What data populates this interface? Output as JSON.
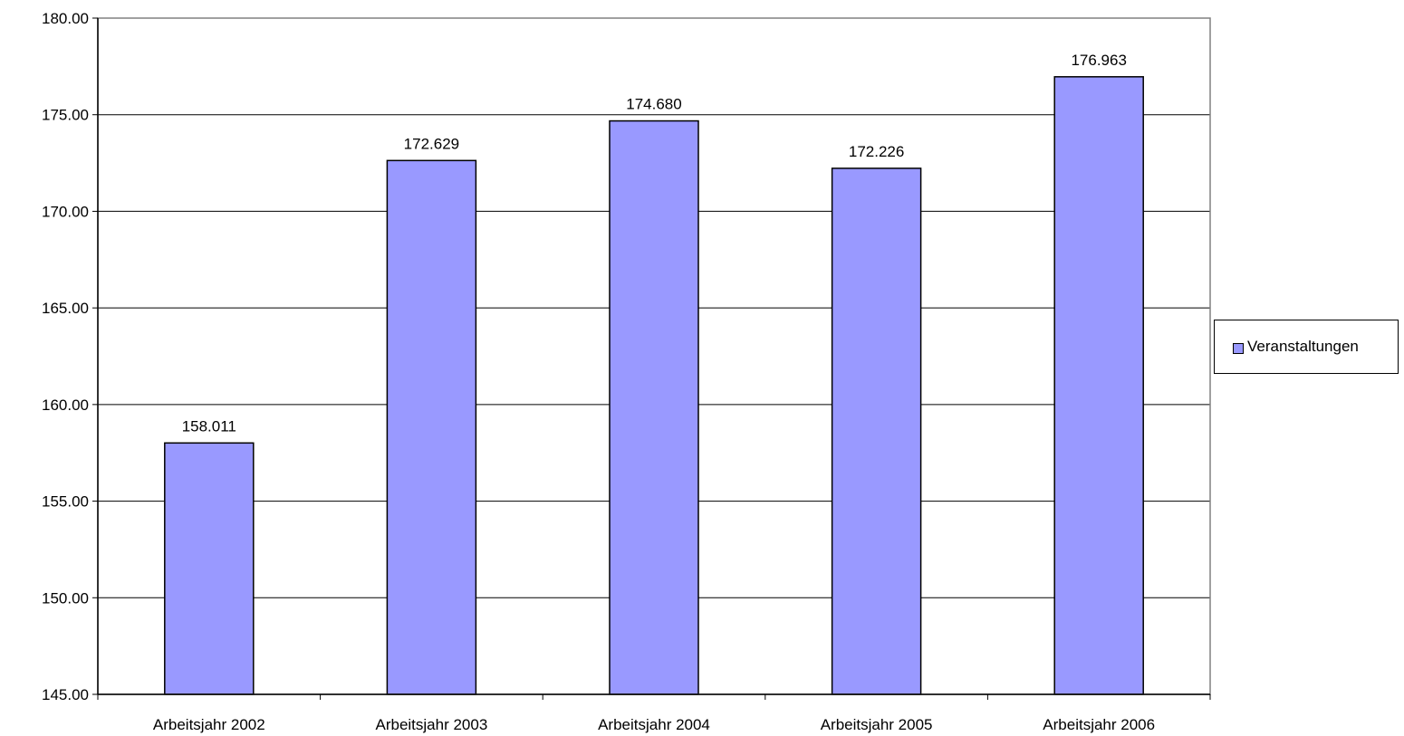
{
  "chart_data": {
    "type": "bar",
    "categories": [
      "Arbeitsjahr 2002",
      "Arbeitsjahr 2003",
      "Arbeitsjahr 2004",
      "Arbeitsjahr 2005",
      "Arbeitsjahr 2006"
    ],
    "series": [
      {
        "name": "Veranstaltungen",
        "values": [
          158.011,
          172.629,
          174.68,
          172.226,
          176.963
        ],
        "labels": [
          "158.011",
          "172.629",
          "174.680",
          "172.226",
          "176.963"
        ],
        "color": "#9999ff"
      }
    ],
    "ylim": [
      145,
      180
    ],
    "yticks": [
      "145.00",
      "150.00",
      "155.00",
      "160.00",
      "165.00",
      "170.00",
      "175.00",
      "180.00"
    ],
    "ytick_values": [
      145,
      150,
      155,
      160,
      165,
      170,
      175,
      180
    ],
    "grid": true,
    "legend": "right"
  }
}
